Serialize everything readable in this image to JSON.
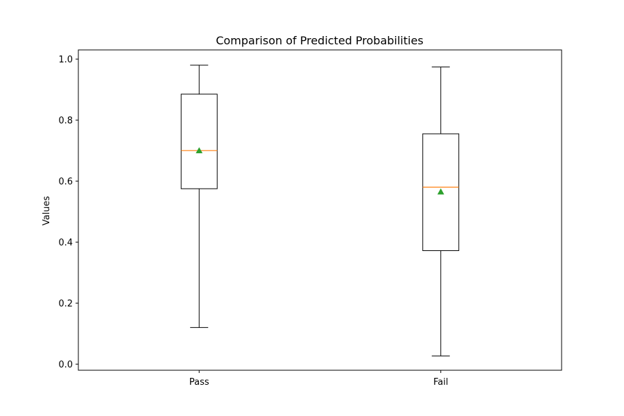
{
  "chart_data": {
    "type": "box",
    "title": "Comparison of Predicted Probabilities",
    "xlabel": "",
    "ylabel": "Values",
    "ylim": [
      -0.02,
      1.03
    ],
    "yticks": [
      0.0,
      0.2,
      0.4,
      0.6,
      0.8,
      1.0
    ],
    "ytick_labels": [
      "0.0",
      "0.2",
      "0.4",
      "0.6",
      "0.8",
      "1.0"
    ],
    "grid": false,
    "categories": [
      "Pass",
      "Fail"
    ],
    "boxes": [
      {
        "category": "Pass",
        "whisker_low": 0.12,
        "q1": 0.575,
        "median": 0.7,
        "q3": 0.885,
        "whisker_high": 0.98,
        "mean": 0.7
      },
      {
        "category": "Fail",
        "whisker_low": 0.027,
        "q1": 0.372,
        "median": 0.58,
        "q3": 0.755,
        "whisker_high": 0.974,
        "mean": 0.565
      }
    ],
    "colors": {
      "box": "#000000",
      "median": "#ff7f0e",
      "mean": "#2ca02c"
    }
  }
}
